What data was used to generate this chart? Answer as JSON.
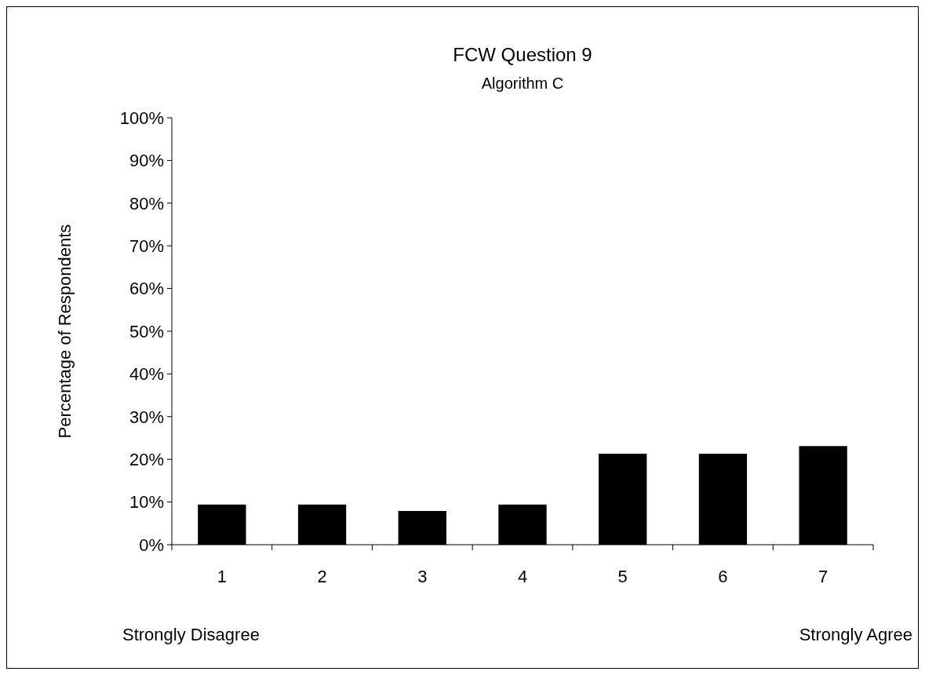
{
  "chart_data": {
    "type": "bar",
    "title": "FCW Question 9",
    "subtitle": "Algorithm C",
    "ylabel": "Percentage of Respondents",
    "categories": [
      "1",
      "2",
      "3",
      "4",
      "5",
      "6",
      "7"
    ],
    "values": [
      9.4,
      9.4,
      7.9,
      9.4,
      21.3,
      21.3,
      23.1
    ],
    "color": "#000000",
    "ylim": [
      0,
      100
    ],
    "yticks": [
      {
        "value": 0,
        "label": "0%"
      },
      {
        "value": 10,
        "label": "10%"
      },
      {
        "value": 20,
        "label": "20%"
      },
      {
        "value": 30,
        "label": "30%"
      },
      {
        "value": 40,
        "label": "40%"
      },
      {
        "value": 50,
        "label": "50%"
      },
      {
        "value": 60,
        "label": "60%"
      },
      {
        "value": 70,
        "label": "70%"
      },
      {
        "value": 80,
        "label": "80%"
      },
      {
        "value": 90,
        "label": "90%"
      },
      {
        "value": 100,
        "label": "100%"
      }
    ],
    "annotations": [
      "Strongly Disagree",
      "Strongly Agree"
    ],
    "grid": false
  }
}
